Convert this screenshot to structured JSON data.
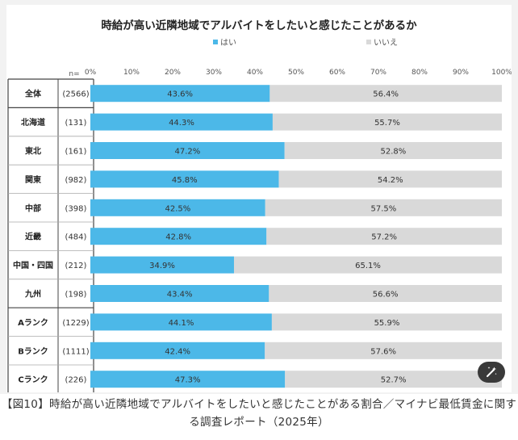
{
  "chart_data": {
    "type": "bar",
    "stacked": true,
    "orientation": "horizontal",
    "title": "時給が高い近隣地域でアルバイトをしたいと感じたことがあるか",
    "n_label": "n=",
    "x_ticks": [
      "0%",
      "10%",
      "20%",
      "30%",
      "40%",
      "50%",
      "60%",
      "70%",
      "80%",
      "90%",
      "100%"
    ],
    "xlim": [
      0,
      100
    ],
    "legend": [
      {
        "name": "はい",
        "color": "#4cb8e8"
      },
      {
        "name": "いいえ",
        "color": "#d9d9d9"
      }
    ],
    "categories": [
      "全体",
      "北海道",
      "東北",
      "関東",
      "中部",
      "近畿",
      "中国・四国",
      "九州",
      "Aランク",
      "Bランク",
      "Cランク"
    ],
    "n_values": [
      "(2566)",
      "(131)",
      "(161)",
      "(982)",
      "(398)",
      "(484)",
      "(212)",
      "(198)",
      "(1229)",
      "(1111)",
      "(226)"
    ],
    "series": [
      {
        "name": "はい",
        "color": "#4cb8e8",
        "values": [
          43.6,
          44.3,
          47.2,
          45.8,
          42.5,
          42.8,
          34.9,
          43.4,
          44.1,
          42.4,
          47.3
        ]
      },
      {
        "name": "いいえ",
        "color": "#d9d9d9",
        "values": [
          56.4,
          55.7,
          52.8,
          54.2,
          57.5,
          57.2,
          65.1,
          56.6,
          55.9,
          57.6,
          52.7
        ]
      }
    ],
    "group_breaks_after": [
      0,
      7
    ]
  },
  "caption": "【図10】時給が高い近隣地域でアルバイトをしたいと感じたことがある割合／マイナビ最低賃金に関する調査レポート（2025年）",
  "magic_button_icon": "magic-wand-icon"
}
